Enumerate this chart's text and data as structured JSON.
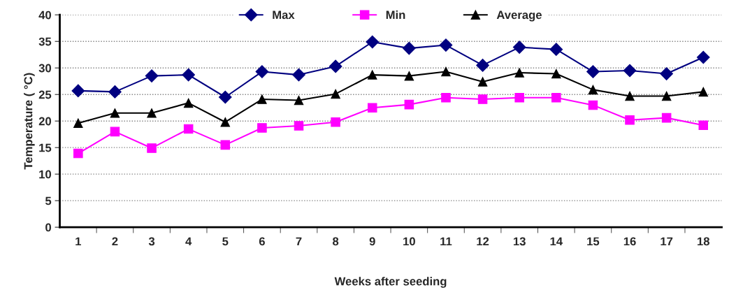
{
  "chart_data": {
    "type": "line",
    "xlabel": "Weeks after seeding",
    "ylabel": "Temperature ( °C)",
    "categories": [
      "1",
      "2",
      "3",
      "4",
      "5",
      "6",
      "7",
      "8",
      "9",
      "10",
      "11",
      "12",
      "13",
      "14",
      "15",
      "16",
      "17",
      "18"
    ],
    "series": [
      {
        "name": "Max",
        "color": "#000080",
        "marker": "diamond",
        "values": [
          25.7,
          25.5,
          28.5,
          28.7,
          24.5,
          29.3,
          28.7,
          30.3,
          34.9,
          33.7,
          34.3,
          30.5,
          33.9,
          33.5,
          29.3,
          29.5,
          28.9,
          32.0
        ]
      },
      {
        "name": "Min",
        "color": "#ff00ff",
        "marker": "square",
        "values": [
          13.9,
          18.0,
          14.9,
          18.5,
          15.5,
          18.7,
          19.1,
          19.8,
          22.5,
          23.1,
          24.4,
          24.1,
          24.4,
          24.4,
          23.0,
          20.2,
          20.6,
          19.2
        ]
      },
      {
        "name": "Average",
        "color": "#000000",
        "marker": "triangle",
        "values": [
          19.6,
          21.5,
          21.5,
          23.4,
          19.8,
          24.1,
          23.9,
          25.1,
          28.7,
          28.5,
          29.3,
          27.4,
          29.1,
          28.9,
          25.9,
          24.7,
          24.7,
          25.5
        ]
      }
    ],
    "ylim": [
      0,
      40
    ],
    "yticks": [
      0,
      5,
      10,
      15,
      20,
      25,
      30,
      35,
      40
    ],
    "grid": "y",
    "legend": "top"
  }
}
